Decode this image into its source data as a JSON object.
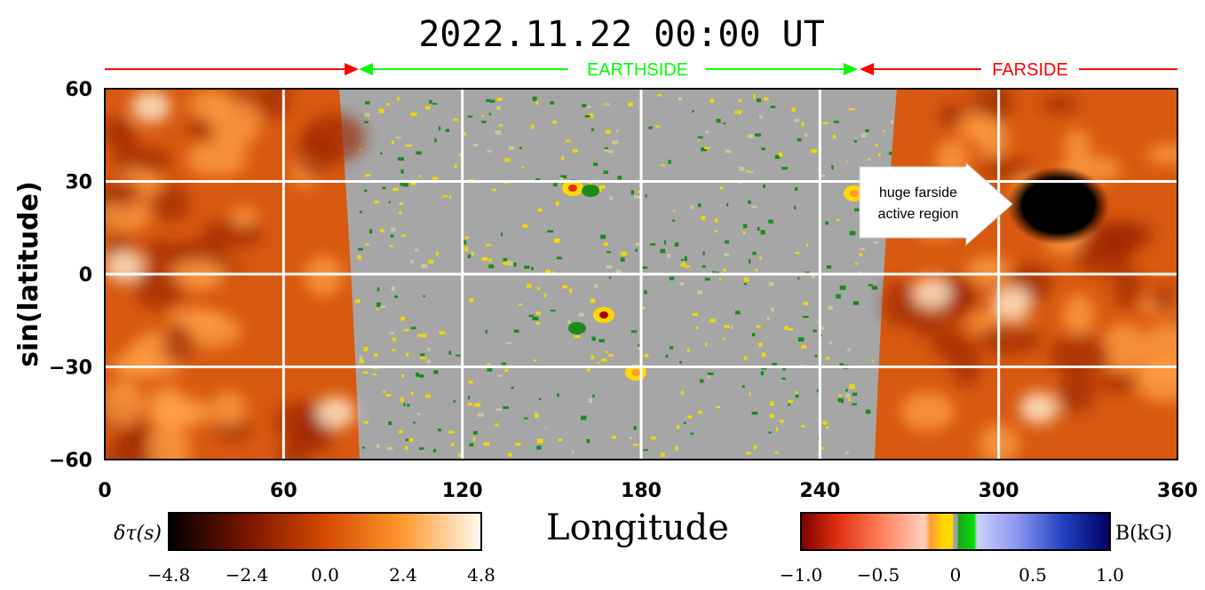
{
  "chart_data": {
    "type": "heatmap",
    "title": "2022.11.22 00:00 UT",
    "xlabel": "Longitude",
    "ylabel": "sin(latitude)",
    "xlim": [
      0,
      360
    ],
    "ylim": [
      -60,
      60
    ],
    "x_ticks": [
      0,
      60,
      120,
      180,
      240,
      300,
      360
    ],
    "y_ticks": [
      60,
      30,
      0,
      -30,
      -60
    ],
    "x_tick_labels": [
      "0",
      "60",
      "120",
      "180",
      "240",
      "300",
      "360"
    ],
    "y_tick_labels": [
      "60",
      "30",
      "0",
      "−30",
      "−60"
    ],
    "grid": true,
    "regions": [
      {
        "label": "EARTHSIDE",
        "from_lon": 86,
        "to_lon": 253,
        "color": "#00ff00"
      },
      {
        "label": "FARSIDE",
        "from_lon": 258,
        "to_lon": 360,
        "color": "#ff0000"
      }
    ],
    "farside_left_arrow_range": [
      0,
      84
    ],
    "farside_map": {
      "quantity": "δτ(s)",
      "lon_ranges": [
        [
          0,
          84
        ],
        [
          258,
          360
        ]
      ]
    },
    "earthside_map": {
      "quantity": "B(kG)",
      "lon_range": [
        84,
        258
      ]
    },
    "annotation": {
      "text_line1": "huge farside",
      "text_line2": "active region",
      "target_lon": 323,
      "target_lat": 23
    },
    "colorbars": [
      {
        "name": "δτ(s)",
        "range": [
          -4.8,
          4.8
        ],
        "tick_labels": [
          "−4.8",
          "−2.4",
          "0.0",
          "2.4",
          "4.8"
        ]
      },
      {
        "name": "B(kG)",
        "range": [
          -1.0,
          1.0
        ],
        "tick_labels": [
          "−1.0",
          "−0.5",
          "0",
          "0.5",
          "1.0"
        ]
      }
    ]
  },
  "colors": {
    "farside_dark": "#a02800",
    "farside_mid": "#e66a18",
    "farside_light": "#ffd9a8",
    "earthside_bg": "#a6a6a6",
    "positive_field": "#f0d800",
    "negative_field": "#1a8c1a",
    "grid": "#ffffff"
  }
}
